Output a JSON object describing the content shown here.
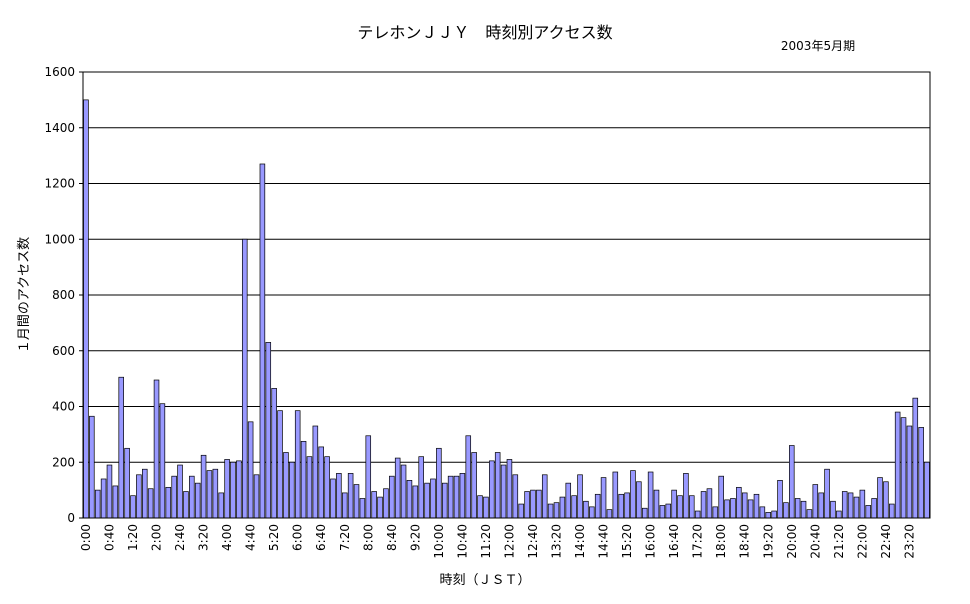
{
  "chart_data": {
    "type": "bar",
    "title": "テレホンＪＪＹ　時刻別アクセス数",
    "subtitle": "2003年5月期",
    "xlabel": "時刻（ＪＳＴ）",
    "ylabel": "１月間のアクセス数",
    "ylim": [
      0,
      1600
    ],
    "yticks": [
      0,
      200,
      400,
      600,
      800,
      1000,
      1200,
      1400,
      1600
    ],
    "grid": true,
    "x_tick_labels": [
      "0:00",
      "0:40",
      "1:20",
      "2:00",
      "2:40",
      "3:20",
      "4:00",
      "4:40",
      "5:20",
      "6:00",
      "6:40",
      "7:20",
      "8:00",
      "8:40",
      "9:20",
      "10:00",
      "10:40",
      "11:20",
      "12:00",
      "12:40",
      "13:20",
      "14:00",
      "14:40",
      "15:20",
      "16:00",
      "16:40",
      "17:20",
      "18:00",
      "18:40",
      "19:20",
      "20:00",
      "20:40",
      "21:20",
      "22:00",
      "22:40",
      "23:20"
    ],
    "bar_color": "#9999ff",
    "values": [
      1500,
      365,
      100,
      140,
      190,
      115,
      505,
      250,
      80,
      155,
      175,
      105,
      495,
      410,
      110,
      150,
      190,
      95,
      150,
      125,
      225,
      170,
      175,
      90,
      210,
      200,
      205,
      1000,
      345,
      155,
      1270,
      630,
      465,
      385,
      235,
      200,
      385,
      275,
      220,
      330,
      255,
      220,
      140,
      160,
      90,
      160,
      120,
      70,
      295,
      95,
      75,
      105,
      150,
      215,
      190,
      135,
      115,
      220,
      125,
      140,
      250,
      125,
      150,
      150,
      160,
      295,
      235,
      80,
      75,
      205,
      235,
      190,
      210,
      155,
      50,
      95,
      100,
      100,
      155,
      50,
      55,
      75,
      125,
      80,
      155,
      60,
      40,
      85,
      145,
      30,
      165,
      85,
      90,
      170,
      130,
      35,
      165,
      100,
      45,
      50,
      100,
      80,
      160,
      80,
      25,
      95,
      105,
      40,
      150,
      65,
      70,
      110,
      90,
      65,
      85,
      40,
      20,
      25,
      135,
      55,
      260,
      70,
      60,
      30,
      120,
      90,
      175,
      60,
      25,
      95,
      90,
      75,
      100,
      45,
      70,
      145,
      130,
      50,
      380,
      360,
      330,
      430,
      325,
      200
    ]
  }
}
